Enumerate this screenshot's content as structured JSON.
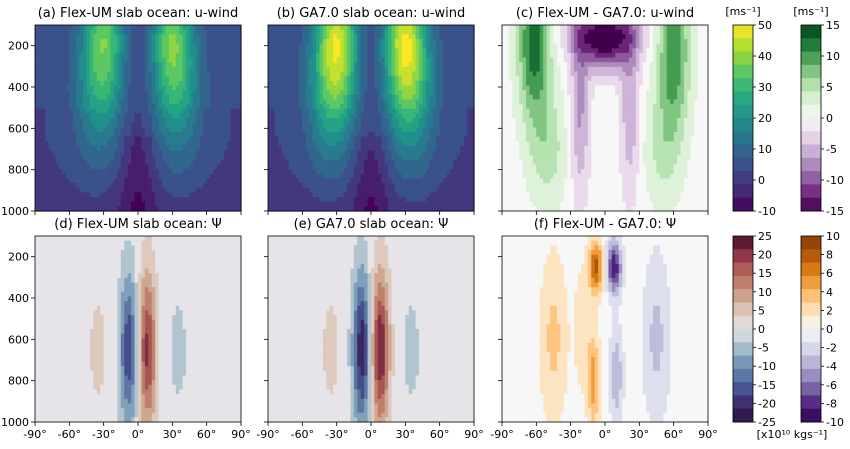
{
  "chart_data": [
    {
      "type": "heatmap",
      "title": "(a) Flex-UM slab ocean: u-wind",
      "field": "u",
      "colorbar": "cb_u",
      "xticks": [
        "-90°",
        "-60°",
        "-30°",
        "0°",
        "30°",
        "60°",
        "90°"
      ],
      "xlim": [
        -90,
        90
      ],
      "yticks": [
        "200",
        "400",
        "600",
        "800",
        "1000"
      ],
      "ylim": [
        1000,
        100
      ],
      "jets": [
        {
          "lat": -30,
          "level": 190,
          "max": 35
        },
        {
          "lat": 30,
          "level": 200,
          "max": 36
        }
      ]
    },
    {
      "type": "heatmap",
      "title": "(b) GA7.0 slab ocean: u-wind",
      "field": "u",
      "colorbar": "cb_u",
      "xticks": [
        "-90°",
        "-60°",
        "-30°",
        "0°",
        "30°",
        "60°",
        "90°"
      ],
      "xlim": [
        -90,
        90
      ],
      "yticks": [
        "200",
        "400",
        "600",
        "800",
        "1000"
      ],
      "ylim": [
        1000,
        100
      ],
      "jets": [
        {
          "lat": -30,
          "level": 200,
          "max": 46
        },
        {
          "lat": 30,
          "level": 200,
          "max": 47
        }
      ]
    },
    {
      "type": "heatmap",
      "title": "(c) Flex-UM - GA7.0: u-wind",
      "field": "du",
      "colorbar": "cb_du",
      "xticks": [
        "-90°",
        "-60°",
        "-30°",
        "0°",
        "30°",
        "60°",
        "90°"
      ],
      "xlim": [
        -90,
        90
      ],
      "yticks": [
        "200",
        "400",
        "600",
        "800",
        "1000"
      ],
      "ylim": [
        1000,
        100
      ],
      "extrema": [
        {
          "lat": -60,
          "level": 150,
          "value": 13
        },
        {
          "lat": 0,
          "level": 150,
          "value": -15
        },
        {
          "lat": 60,
          "level": 200,
          "value": 12
        }
      ]
    },
    {
      "type": "heatmap",
      "title": "(d) Flex-UM slab ocean: Ψ",
      "field": "psi",
      "colorbar": "cb_psi",
      "xticks": [
        "-90°",
        "-60°",
        "-30°",
        "0°",
        "30°",
        "60°",
        "90°"
      ],
      "xlim": [
        -90,
        90
      ],
      "yticks": [
        "200",
        "400",
        "600",
        "800",
        "1000"
      ],
      "ylim": [
        1000,
        100
      ],
      "cells": [
        {
          "lat": -8,
          "level": 650,
          "value": -18
        },
        {
          "lat": 8,
          "level": 650,
          "value": 20
        }
      ]
    },
    {
      "type": "heatmap",
      "title": "(e) GA7.0 slab ocean: Ψ",
      "field": "psi",
      "colorbar": "cb_psi",
      "xticks": [
        "-90°",
        "-60°",
        "-30°",
        "0°",
        "30°",
        "60°",
        "90°"
      ],
      "xlim": [
        -90,
        90
      ],
      "yticks": [
        "200",
        "400",
        "600",
        "800",
        "1000"
      ],
      "ylim": [
        1000,
        100
      ],
      "cells": [
        {
          "lat": -8,
          "level": 650,
          "value": -22
        },
        {
          "lat": 8,
          "level": 650,
          "value": 23
        }
      ]
    },
    {
      "type": "heatmap",
      "title": "(f) Flex-UM - GA7.0: Ψ",
      "field": "dpsi",
      "colorbar": "cb_dpsi",
      "xticks": [
        "-90°",
        "-60°",
        "-30°",
        "0°",
        "30°",
        "60°",
        "90°"
      ],
      "xlim": [
        -90,
        90
      ],
      "yticks": [
        "200",
        "400",
        "600",
        "800",
        "1000"
      ],
      "ylim": [
        1000,
        100
      ],
      "extrema": [
        {
          "lat": -8,
          "level": 250,
          "value": 8
        },
        {
          "lat": 8,
          "level": 250,
          "value": -9
        }
      ]
    }
  ],
  "colorbars": {
    "cb_u": {
      "unit": "[ms⁻¹]",
      "ticks": [
        "50",
        "40",
        "30",
        "20",
        "10",
        "0",
        "-10"
      ],
      "range": [
        -10,
        50
      ],
      "colors": [
        "#440154",
        "#472c7a",
        "#3b518b",
        "#2c718e",
        "#21908d",
        "#27ad81",
        "#5cc863",
        "#aadc32",
        "#fde725"
      ]
    },
    "cb_du": {
      "unit": "[ms⁻¹]",
      "ticks": [
        "15",
        "10",
        "5",
        "0",
        "-5",
        "-10",
        "-15"
      ],
      "range": [
        -15,
        15
      ],
      "colors": [
        "#40004b",
        "#762a83",
        "#9970ab",
        "#c2a5cf",
        "#e7d4e8",
        "#f7f7f7",
        "#d9f0d3",
        "#a6dba0",
        "#5aae61",
        "#1b7837",
        "#00441b"
      ]
    },
    "cb_psi": {
      "ticks": [
        "25",
        "20",
        "15",
        "10",
        "5",
        "0",
        "-5",
        "-10",
        "-15",
        "-20",
        "-25"
      ],
      "range": [
        -25,
        25
      ],
      "colors": [
        "#2f0f3d",
        "#3e2c6e",
        "#485f9a",
        "#6d8fb0",
        "#a6bfcb",
        "#e6e4e9",
        "#dcc4b4",
        "#c99780",
        "#b5675a",
        "#8f3447",
        "#3f0f2a"
      ]
    },
    "cb_dpsi": {
      "unit": "[x10¹⁰ kgs⁻¹]",
      "ticks": [
        "10",
        "8",
        "6",
        "4",
        "2",
        "0",
        "-2",
        "-4",
        "-6",
        "-8",
        "-10"
      ],
      "range": [
        -10,
        10
      ],
      "colors": [
        "#2d004b",
        "#542788",
        "#8073ac",
        "#b2abd2",
        "#d8daeb",
        "#f7f7f7",
        "#fee0b6",
        "#fdb863",
        "#e08214",
        "#b35806",
        "#7f3b08"
      ]
    }
  }
}
